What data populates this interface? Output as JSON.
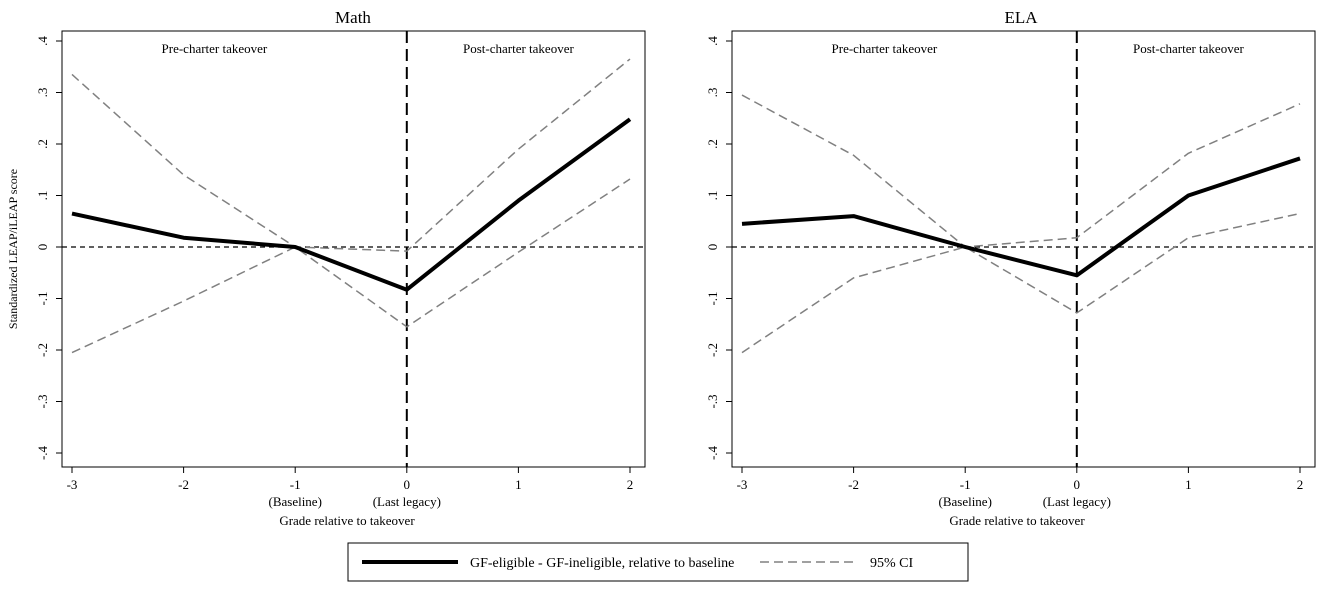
{
  "chart_data": [
    {
      "type": "line",
      "title": "Math",
      "xlabel": "Grade relative to takeover",
      "ylabel": "Standardized LEAP/iLEAP score",
      "xlim": [
        -3,
        2
      ],
      "ylim": [
        -0.4,
        0.4
      ],
      "x": [
        -3,
        -2,
        -1,
        0,
        1,
        2
      ],
      "x_ticks": [
        "-3",
        "-2",
        "-1",
        "0",
        "1",
        "2"
      ],
      "x_sublabels": [
        {
          "x": -1,
          "text": "(Baseline)"
        },
        {
          "x": 0,
          "text": "(Last legacy)"
        }
      ],
      "y_ticks": [
        -0.4,
        -0.3,
        -0.2,
        -0.1,
        0,
        0.1,
        0.2,
        0.3,
        0.4
      ],
      "y_tick_labels": [
        "-.4",
        "-.3",
        "-.2",
        "-.1",
        "0",
        ".1",
        ".2",
        ".3",
        ".4"
      ],
      "region_labels": [
        "Pre-charter takeover",
        "Post-charter takeover"
      ],
      "series": [
        {
          "name": "GF-eligible - GF-ineligible, relative to baseline",
          "role": "estimate",
          "values": [
            0.065,
            0.018,
            0.0,
            -0.083,
            0.09,
            0.248
          ]
        },
        {
          "name": "95% CI",
          "role": "ci_upper",
          "values": [
            0.335,
            0.14,
            0.0,
            -0.008,
            0.19,
            0.365
          ]
        },
        {
          "name": "95% CI",
          "role": "ci_lower",
          "values": [
            -0.205,
            -0.105,
            0.0,
            -0.155,
            -0.01,
            0.132
          ]
        }
      ],
      "reference_lines": {
        "horizontal": 0,
        "vertical": 0
      }
    },
    {
      "type": "line",
      "title": "ELA",
      "xlabel": "Grade relative to takeover",
      "ylabel": "",
      "xlim": [
        -3,
        2
      ],
      "ylim": [
        -0.4,
        0.4
      ],
      "x": [
        -3,
        -2,
        -1,
        0,
        1,
        2
      ],
      "x_ticks": [
        "-3",
        "-2",
        "-1",
        "0",
        "1",
        "2"
      ],
      "x_sublabels": [
        {
          "x": -1,
          "text": "(Baseline)"
        },
        {
          "x": 0,
          "text": "(Last legacy)"
        }
      ],
      "y_ticks": [
        -0.4,
        -0.3,
        -0.2,
        -0.1,
        0,
        0.1,
        0.2,
        0.3,
        0.4
      ],
      "y_tick_labels": [
        "-.4",
        "-.3",
        "-.2",
        "-.1",
        "0",
        ".1",
        ".2",
        ".3",
        ".4"
      ],
      "region_labels": [
        "Pre-charter takeover",
        "Post-charter takeover"
      ],
      "series": [
        {
          "name": "GF-eligible - GF-ineligible, relative to baseline",
          "role": "estimate",
          "values": [
            0.045,
            0.06,
            0.0,
            -0.055,
            0.1,
            0.172
          ]
        },
        {
          "name": "95% CI",
          "role": "ci_upper",
          "values": [
            0.295,
            0.178,
            0.0,
            0.018,
            0.182,
            0.278
          ]
        },
        {
          "name": "95% CI",
          "role": "ci_lower",
          "values": [
            -0.205,
            -0.06,
            0.0,
            -0.128,
            0.018,
            0.065
          ]
        }
      ],
      "reference_lines": {
        "horizontal": 0,
        "vertical": 0
      }
    }
  ],
  "legend": {
    "placement": "bottom-center",
    "items": [
      {
        "label": "GF-eligible - GF-ineligible, relative to baseline",
        "style": "solid"
      },
      {
        "label": "95% CI",
        "style": "dashed"
      }
    ]
  },
  "colors": {
    "estimate": "#000000",
    "ci": "#808080",
    "reference": "#000000"
  }
}
